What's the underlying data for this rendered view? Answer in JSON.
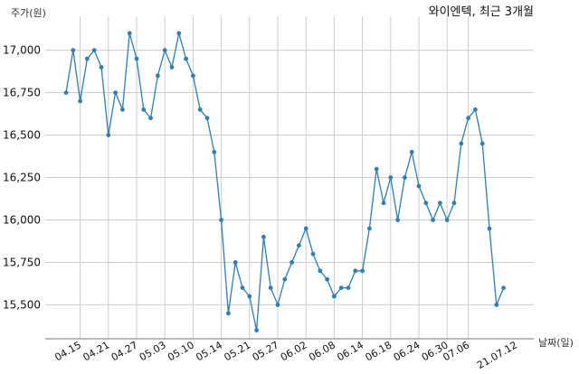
{
  "chart_data": {
    "type": "line",
    "title": "와이엔텍, 최근 3개월",
    "ylabel": "주가(원)",
    "xlabel": "날짜(일)",
    "ylim": [
      15300,
      17200
    ],
    "yticks": [
      15500,
      15750,
      16000,
      16250,
      16500,
      16750,
      17000
    ],
    "ytick_labels": [
      "15,500",
      "15,750",
      "16,000",
      "16,250",
      "16,500",
      "16,750",
      "17,000"
    ],
    "xtick_indices": [
      2,
      6,
      10,
      14,
      18,
      22,
      26,
      30,
      34,
      38,
      42,
      46,
      50,
      54,
      57
    ],
    "xtick_labels": [
      "04.15",
      "04.21",
      "04.27",
      "05.03",
      "05.10",
      "05.14",
      "05.21",
      "05.27",
      "06.02",
      "06.08",
      "06.14",
      "06.18",
      "06.24",
      "06.30",
      "07.06"
    ],
    "last_label": "21.07.12",
    "grid": true,
    "color": "#2d7fb8",
    "values": [
      16750,
      17000,
      16700,
      16950,
      17000,
      16900,
      16500,
      16750,
      16650,
      17100,
      16950,
      16650,
      16600,
      16850,
      17000,
      16900,
      17100,
      16950,
      16850,
      16650,
      16600,
      16400,
      16000,
      15450,
      15750,
      15600,
      15550,
      15350,
      15900,
      15600,
      15500,
      15650,
      15750,
      15850,
      15950,
      15800,
      15700,
      15650,
      15550,
      15600,
      15600,
      15700,
      15700,
      15950,
      16300,
      16100,
      16250,
      16000,
      16250,
      16400,
      16200,
      16100,
      16000,
      16100,
      16000,
      16100,
      16450,
      16600,
      16650,
      16450,
      15950,
      15500,
      15600
    ]
  }
}
